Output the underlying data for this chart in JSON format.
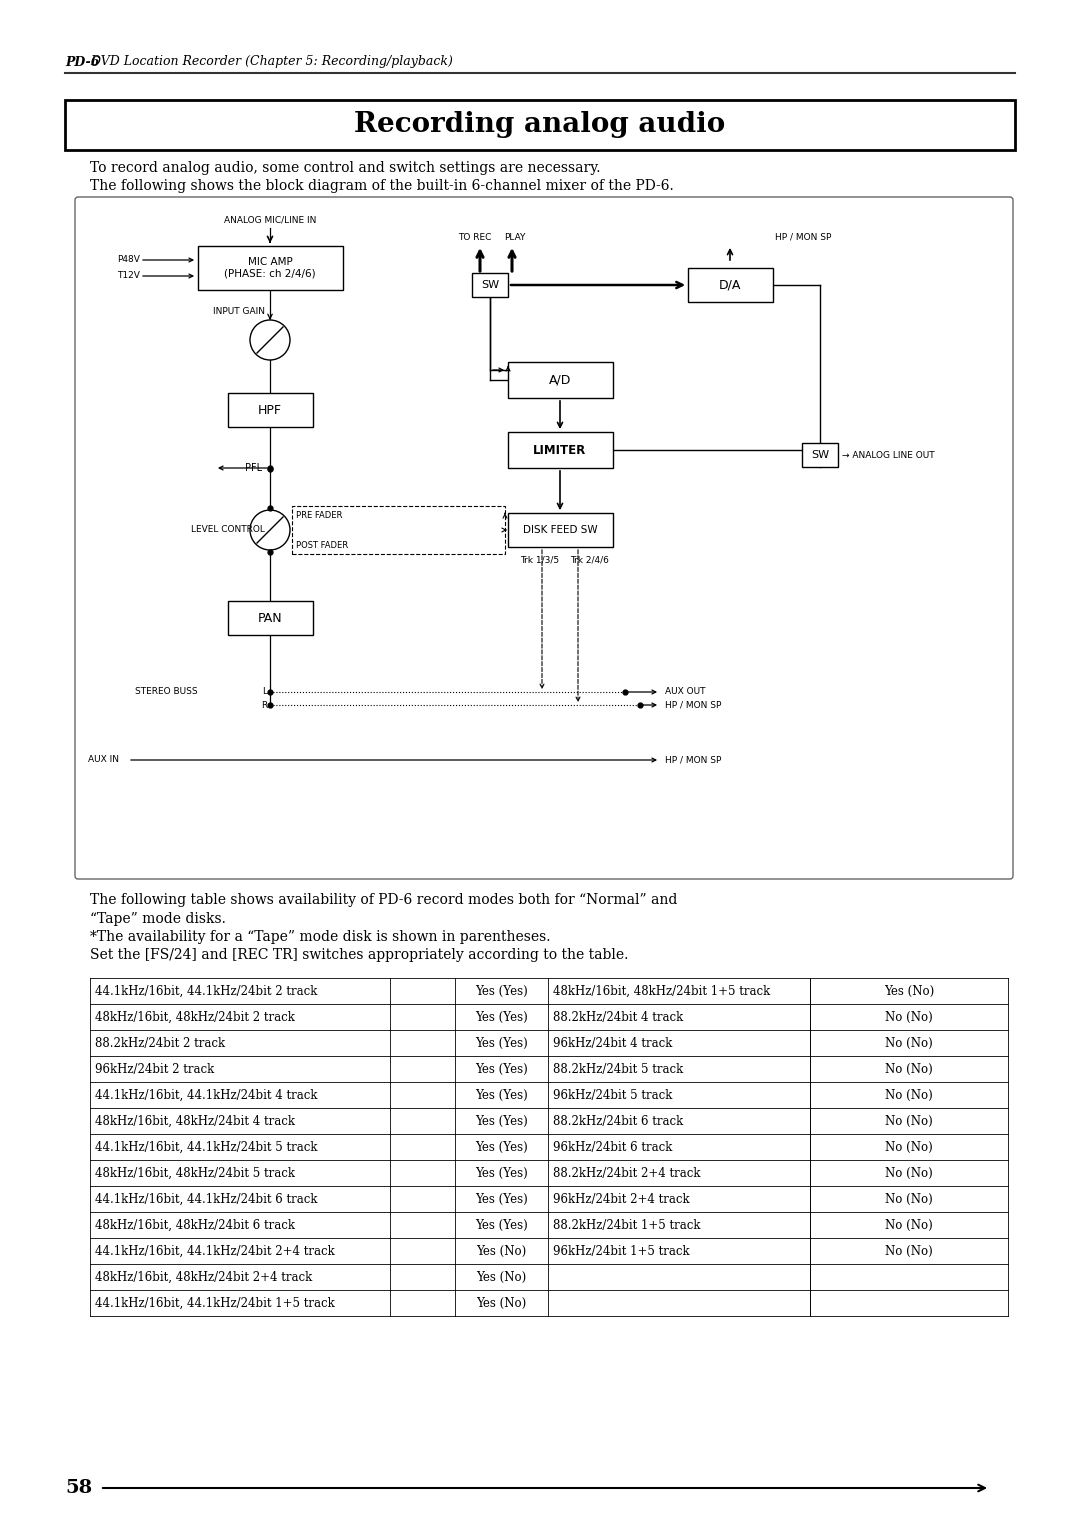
{
  "page_title_bold": "PD-6",
  "page_title_rest": " DVD Location Recorder (Chapter 5: Recording/playback)",
  "section_title": "Recording analog audio",
  "intro_line1": "To record analog audio, some control and switch settings are necessary.",
  "intro_line2": "The following shows the block diagram of the built-in 6-channel mixer of the PD-6.",
  "table_note1a": "The following table shows availability of PD-6 record modes both for “Normal” and",
  "table_note1b": "“Tape” mode disks.",
  "table_note2": "*The availability for a “Tape” mode disk is shown in parentheses.",
  "table_note3": "Set the [FS/24] and [REC TR] switches appropriately according to the table.",
  "page_number": "58",
  "table_left": [
    [
      "44.1kHz/16bit, 44.1kHz/24bit 2 track",
      "Yes (Yes)"
    ],
    [
      "48kHz/16bit, 48kHz/24bit 2 track",
      "Yes (Yes)"
    ],
    [
      "88.2kHz/24bit 2 track",
      "Yes (Yes)"
    ],
    [
      "96kHz/24bit 2 track",
      "Yes (Yes)"
    ],
    [
      "44.1kHz/16bit, 44.1kHz/24bit 4 track",
      "Yes (Yes)"
    ],
    [
      "48kHz/16bit, 48kHz/24bit 4 track",
      "Yes (Yes)"
    ],
    [
      "44.1kHz/16bit, 44.1kHz/24bit 5 track",
      "Yes (Yes)"
    ],
    [
      "48kHz/16bit, 48kHz/24bit 5 track",
      "Yes (Yes)"
    ],
    [
      "44.1kHz/16bit, 44.1kHz/24bit 6 track",
      "Yes (Yes)"
    ],
    [
      "48kHz/16bit, 48kHz/24bit 6 track",
      "Yes (Yes)"
    ],
    [
      "44.1kHz/16bit, 44.1kHz/24bit 2+4 track",
      "Yes (No)"
    ],
    [
      "48kHz/16bit, 48kHz/24bit 2+4 track",
      "Yes (No)"
    ],
    [
      "44.1kHz/16bit, 44.1kHz/24bit 1+5 track",
      "Yes (No)"
    ]
  ],
  "table_right": [
    [
      "48kHz/16bit, 48kHz/24bit 1+5 track",
      "Yes (No)"
    ],
    [
      "88.2kHz/24bit 4 track",
      "No (No)"
    ],
    [
      "96kHz/24bit 4 track",
      "No (No)"
    ],
    [
      "88.2kHz/24bit 5 track",
      "No (No)"
    ],
    [
      "96kHz/24bit 5 track",
      "No (No)"
    ],
    [
      "88.2kHz/24bit 6 track",
      "No (No)"
    ],
    [
      "96kHz/24bit 6 track",
      "No (No)"
    ],
    [
      "88.2kHz/24bit 2+4 track",
      "No (No)"
    ],
    [
      "96kHz/24bit 2+4 track",
      "No (No)"
    ],
    [
      "88.2kHz/24bit 1+5 track",
      "No (No)"
    ],
    [
      "96kHz/24bit 1+5 track",
      "No (No)"
    ],
    [
      "",
      ""
    ],
    [
      "",
      ""
    ]
  ]
}
